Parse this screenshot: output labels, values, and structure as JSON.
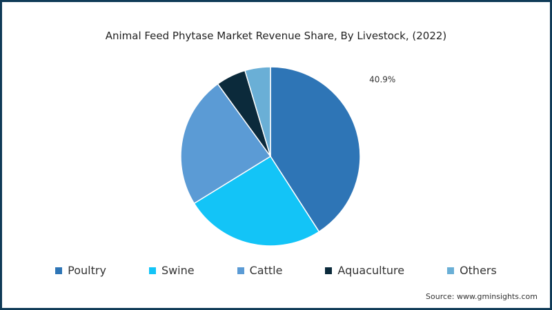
{
  "chart_data": {
    "type": "pie",
    "title": "Animal Feed Phytase Market Revenue Share, By Livestock, (2022)",
    "slices": [
      {
        "name": "Poultry",
        "value": 40.9,
        "color": "#2e75b6",
        "label": "40.9%"
      },
      {
        "name": "Swine",
        "value": 25.3,
        "color": "#13c4f7",
        "label": ""
      },
      {
        "name": "Cattle",
        "value": 23.8,
        "color": "#5b9bd5",
        "label": ""
      },
      {
        "name": "Aquaculture",
        "value": 5.4,
        "color": "#0b2a3b",
        "label": ""
      },
      {
        "name": "Others",
        "value": 4.6,
        "color": "#6aafd6",
        "label": ""
      }
    ],
    "legend_position": "bottom"
  },
  "source": "Source: www.gminsights.com"
}
